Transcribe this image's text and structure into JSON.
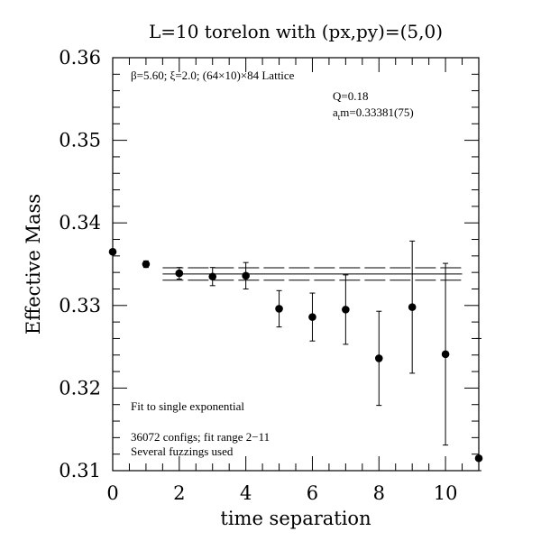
{
  "chart_data": {
    "type": "scatter",
    "title": "L=10 torelon with (px,py)=(5,0)",
    "xlabel": "time separation",
    "ylabel": "Effective Mass",
    "xlim": [
      0,
      11
    ],
    "ylim": [
      0.31,
      0.36
    ],
    "x_ticks": [
      0,
      2,
      4,
      6,
      8,
      10
    ],
    "x_tick_labels": [
      "0",
      "2",
      "4",
      "6",
      "8",
      "10"
    ],
    "y_ticks": [
      0.31,
      0.32,
      0.33,
      0.34,
      0.35,
      0.36
    ],
    "y_tick_labels": [
      "0.31",
      "0.32",
      "0.33",
      "0.34",
      "0.35",
      "0.36"
    ],
    "grid": false,
    "points": [
      {
        "x": 0,
        "y": 0.3365,
        "err": 0.0003
      },
      {
        "x": 1,
        "y": 0.335,
        "err": 0.0004
      },
      {
        "x": 2,
        "y": 0.3339,
        "err": 0.0007
      },
      {
        "x": 3,
        "y": 0.3335,
        "err": 0.0011
      },
      {
        "x": 4,
        "y": 0.3336,
        "err": 0.0016
      },
      {
        "x": 5,
        "y": 0.3296,
        "err": 0.0022
      },
      {
        "x": 6,
        "y": 0.3286,
        "err": 0.0029
      },
      {
        "x": 7,
        "y": 0.3295,
        "err": 0.0042
      },
      {
        "x": 8,
        "y": 0.3236,
        "err": 0.0057
      },
      {
        "x": 9,
        "y": 0.3298,
        "err": 0.008
      },
      {
        "x": 10,
        "y": 0.3241,
        "err": 0.011
      },
      {
        "x": 11,
        "y": 0.3115,
        "err": 0.0145
      }
    ],
    "fit": {
      "x_range": [
        1.5,
        10.5
      ],
      "value": 0.33381,
      "band": [
        0.33306,
        0.33456
      ]
    },
    "annotations": {
      "lattice": "β=5.60; ξ=2.0; (64×10)×84 Lattice",
      "q_value": "Q=0.18",
      "mass_result_prefix": "a",
      "mass_result_sub": "t",
      "mass_result_suffix": "m=0.33381(75)",
      "fit_type": "Fit to single exponential",
      "configs": "36072 configs; fit range 2−11",
      "fuzzings": "Several fuzzings used"
    }
  }
}
